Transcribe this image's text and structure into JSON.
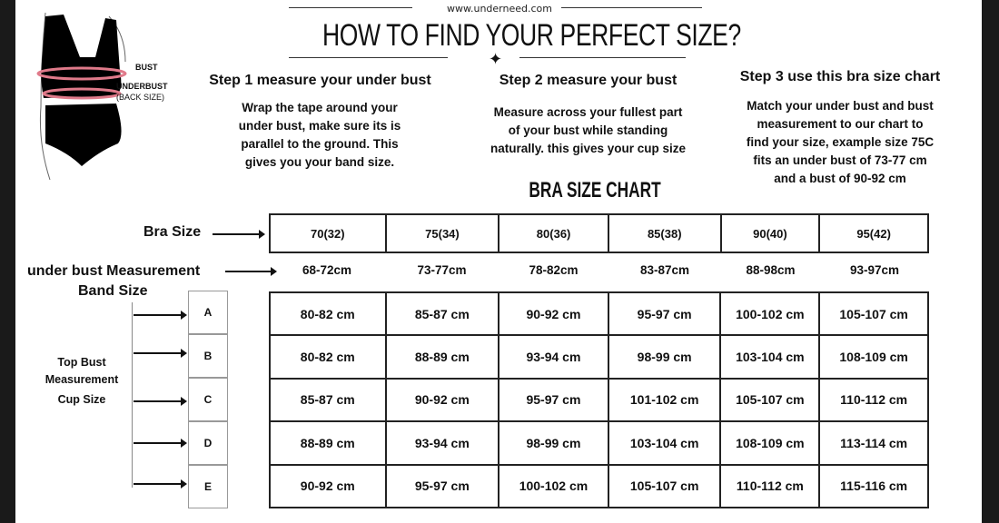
{
  "header": {
    "url": "www.underneed.com",
    "title": "HOW TO FIND YOUR PERFECT SIZE?"
  },
  "illustration": {
    "bust_label": "BUST",
    "underbust_label": "UNDERBUST",
    "underbust_sub": "(BACK SIZE)",
    "tape_color": "#e07a8a"
  },
  "steps": [
    {
      "title": "Step 1 measure your under bust",
      "lines": [
        "Wrap the tape around your",
        "under bust, make sure its is",
        "parallel to the ground. This",
        "gives you your band size."
      ]
    },
    {
      "title": "Step 2 measure your  bust",
      "lines": [
        "Measure across your fullest part",
        "of your bust while standing",
        "naturally. this gives your cup size"
      ]
    },
    {
      "title": "Step 3 use this bra size chart",
      "lines": [
        "Match your under bust and bust",
        "measurement to our chart to",
        "find your size, example size 75C",
        "fits an under bust of 73-77 cm",
        "and a bust of 90-92 cm"
      ]
    }
  ],
  "chart": {
    "title": "BRA SIZE CHART",
    "bra_size_label": "Bra Size",
    "underbust_label": "under bust Measurement",
    "band_size_label": "Band Size",
    "top_bust_label": [
      "Top Bust",
      "Measurement"
    ],
    "cup_size_label": "Cup Size",
    "bra_sizes": [
      "70(32)",
      "75(34)",
      "80(36)",
      "85(38)",
      "90(40)",
      "95(42)"
    ],
    "underbust": [
      "68-72cm",
      "73-77cm",
      "78-82cm",
      "83-87cm",
      "88-98cm",
      "93-97cm"
    ],
    "cups": [
      "A",
      "B",
      "C",
      "D",
      "E"
    ],
    "rows": [
      [
        "80-82 cm",
        "85-87 cm",
        "90-92 cm",
        "95-97 cm",
        "100-102 cm",
        "105-107 cm"
      ],
      [
        "80-82 cm",
        "88-89 cm",
        "93-94 cm",
        "98-99 cm",
        "103-104 cm",
        "108-109 cm"
      ],
      [
        "85-87 cm",
        "90-92 cm",
        "95-97 cm",
        "101-102 cm",
        "105-107 cm",
        "110-112 cm"
      ],
      [
        "88-89 cm",
        "93-94 cm",
        "98-99 cm",
        "103-104 cm",
        "108-109 cm",
        "113-114 cm"
      ],
      [
        "90-92 cm",
        "95-97 cm",
        "100-102 cm",
        "105-107 cm",
        "110-112 cm",
        "115-116 cm"
      ]
    ]
  }
}
